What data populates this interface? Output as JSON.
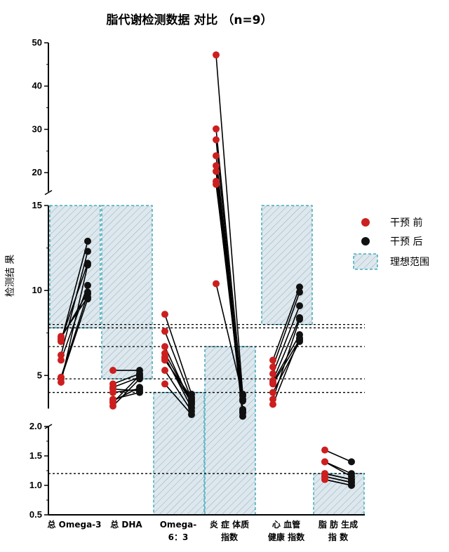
{
  "chart_data": {
    "type": "scatter",
    "title": "脂代谢检测数据 对比 （n=9）",
    "ylabel": "检测结 果",
    "y_axis_segments": [
      {
        "ylim": [
          0.5,
          2.0
        ],
        "ticks": [
          "0.5",
          "1.0",
          "1.5",
          "2.0"
        ]
      },
      {
        "ylim": [
          3.0,
          15.0
        ],
        "ticks": [
          "5",
          "10",
          "15"
        ]
      },
      {
        "ylim": [
          15,
          50
        ],
        "ticks": [
          "20",
          "30",
          "40",
          "50"
        ]
      }
    ],
    "categories": [
      {
        "line1": "总 Omega-3",
        "line2": ""
      },
      {
        "line1": "总 DHA",
        "line2": ""
      },
      {
        "line1": "Omega-",
        "line2": "6：3"
      },
      {
        "line1": "炎 症 体质",
        "line2": "指数"
      },
      {
        "line1": "心 血管",
        "line2": "健康 指数"
      },
      {
        "line1": "脂 肪 生成",
        "line2": "指 数"
      }
    ],
    "ideal_ranges": [
      [
        7.8,
        15.0
      ],
      [
        4.8,
        15.0
      ],
      [
        0.5,
        4.0
      ],
      [
        0.5,
        6.7
      ],
      [
        8.0,
        15.0
      ],
      [
        0.5,
        1.2
      ]
    ],
    "reference_lines": [
      1.2,
      4.0,
      4.8,
      6.7,
      7.8,
      8.0
    ],
    "series": [
      {
        "name": "干预 前",
        "color": "#cc1f1f"
      },
      {
        "name": "干预 后",
        "color": "#111111"
      },
      {
        "name": "理想范围"
      }
    ],
    "pairs": [
      [
        [
          7.3,
          9.6
        ],
        [
          7.1,
          11.6
        ],
        [
          6.2,
          12.3
        ],
        [
          5.9,
          10.3
        ],
        [
          4.9,
          9.8
        ],
        [
          4.6,
          11.5
        ],
        [
          7.0,
          12.9
        ],
        [
          4.8,
          9.5
        ],
        [
          7.2,
          9.9
        ]
      ],
      [
        [
          5.3,
          5.3
        ],
        [
          4.5,
          5.1
        ],
        [
          4.3,
          4.9
        ],
        [
          4.2,
          4.1
        ],
        [
          3.6,
          4.0
        ],
        [
          3.4,
          5.0
        ],
        [
          3.2,
          4.8
        ],
        [
          4.0,
          4.2
        ],
        [
          3.5,
          4.3
        ]
      ],
      [
        [
          8.6,
          3.9
        ],
        [
          7.6,
          3.6
        ],
        [
          6.7,
          3.3
        ],
        [
          6.3,
          3.5
        ],
        [
          6.1,
          3.1
        ],
        [
          5.3,
          2.9
        ],
        [
          4.5,
          2.7
        ],
        [
          6.0,
          3.4
        ],
        [
          5.9,
          3.7
        ]
      ],
      [
        [
          47.2,
          3.9
        ],
        [
          30.1,
          3.6
        ],
        [
          27.6,
          2.9
        ],
        [
          23.9,
          3.0
        ],
        [
          21.6,
          2.8
        ],
        [
          20.3,
          2.6
        ],
        [
          18.0,
          2.9
        ],
        [
          17.3,
          3.5
        ],
        [
          10.4,
          3.8
        ]
      ],
      [
        [
          5.9,
          10.2
        ],
        [
          5.5,
          9.9
        ],
        [
          5.1,
          9.1
        ],
        [
          4.7,
          8.4
        ],
        [
          4.6,
          7.4
        ],
        [
          4.5,
          7.1
        ],
        [
          4.0,
          7.0
        ],
        [
          3.6,
          8.3
        ],
        [
          3.3,
          7.2
        ]
      ],
      [
        [
          1.6,
          1.4
        ],
        [
          1.4,
          1.2
        ],
        [
          1.2,
          1.1
        ],
        [
          1.15,
          1.05
        ],
        [
          1.1,
          1.0
        ],
        [
          1.1,
          1.0
        ],
        [
          1.2,
          1.1
        ],
        [
          1.4,
          1.15
        ],
        [
          1.15,
          1.05
        ]
      ]
    ]
  }
}
